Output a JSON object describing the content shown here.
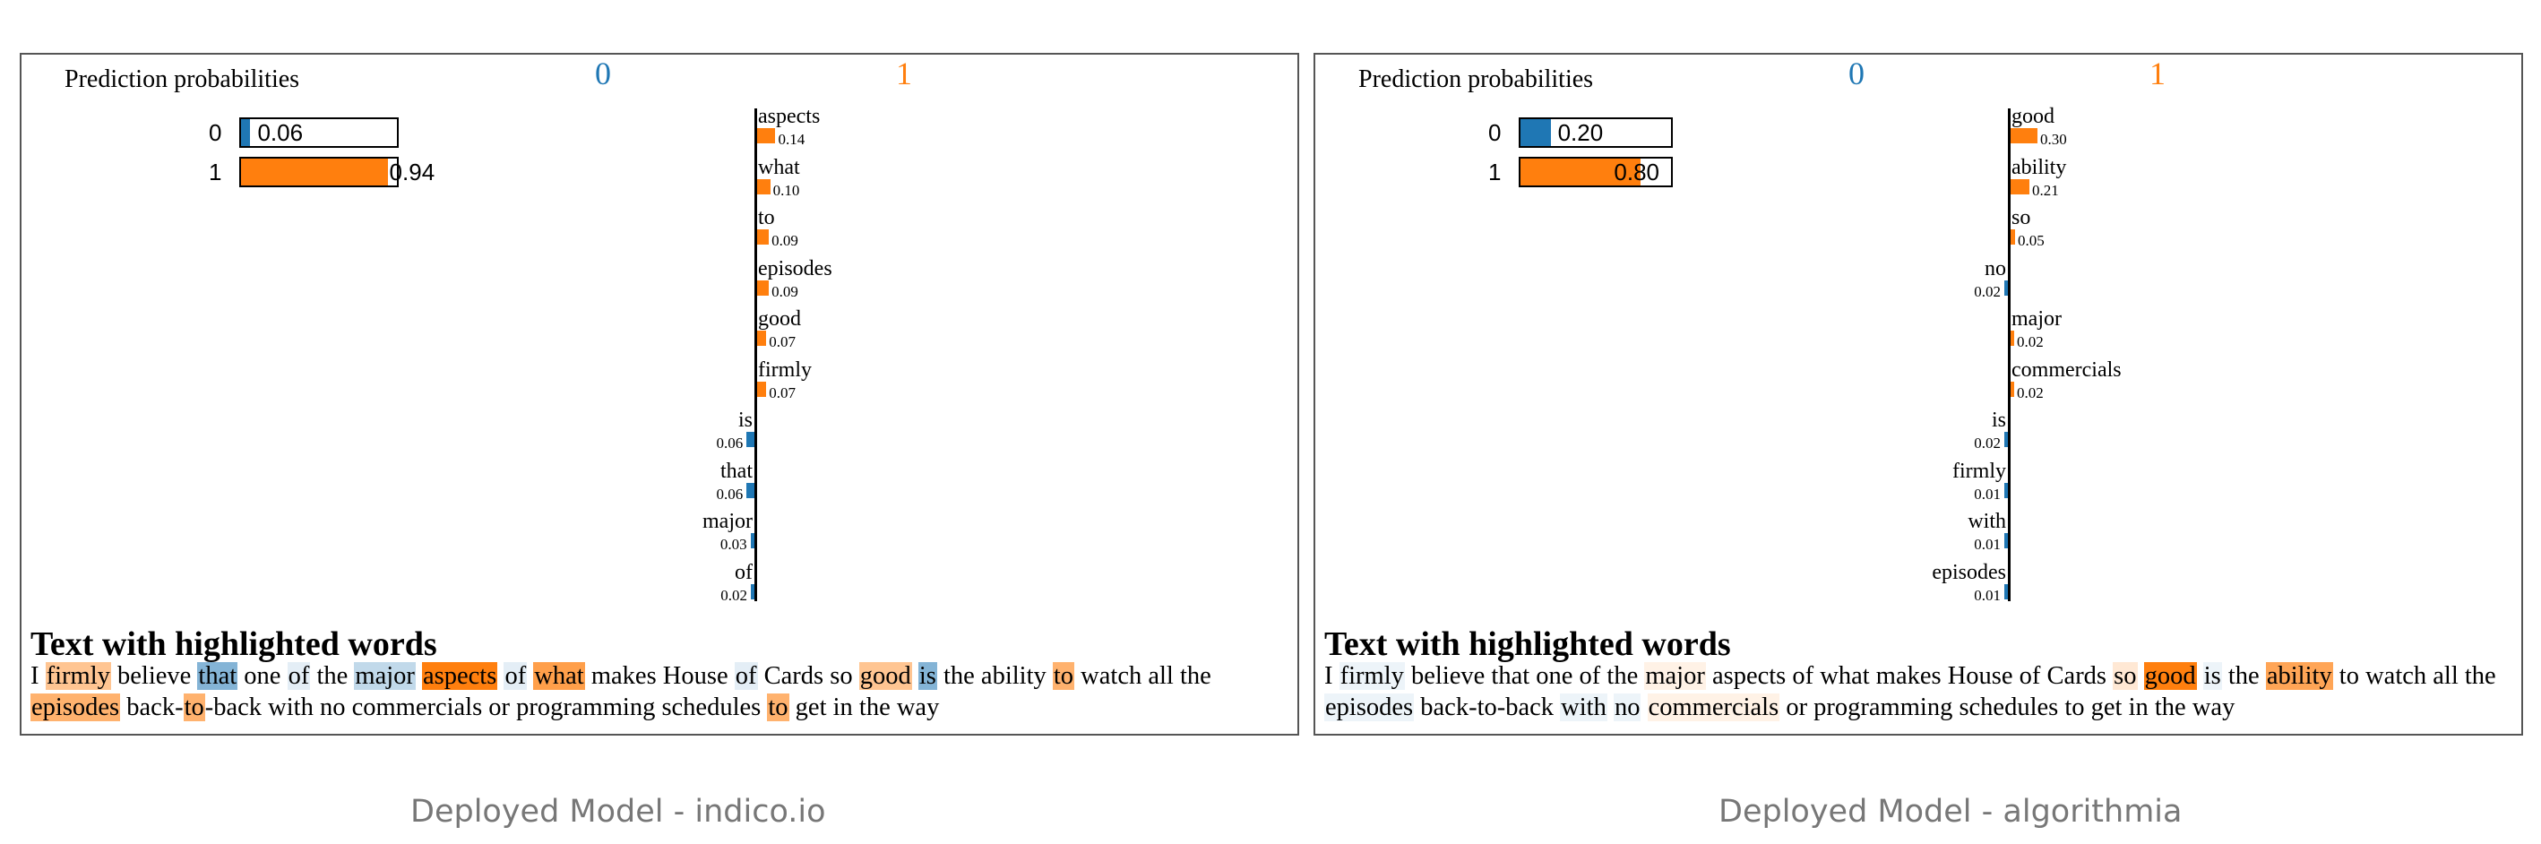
{
  "colors": {
    "class0": "#1f77b4",
    "class1": "#ff7f0e"
  },
  "panels": [
    {
      "title": "Prediction probabilities",
      "class_names": [
        "0",
        "1"
      ],
      "predictions": [
        {
          "label": "0",
          "prob": 0.06,
          "display": "0.06"
        },
        {
          "label": "1",
          "prob": 0.94,
          "display": "0.94"
        }
      ],
      "features": [
        {
          "word": "aspects",
          "weight": 0.14,
          "display": "0.14",
          "cls": 1
        },
        {
          "word": "what",
          "weight": 0.1,
          "display": "0.10",
          "cls": 1
        },
        {
          "word": "to",
          "weight": 0.09,
          "display": "0.09",
          "cls": 1
        },
        {
          "word": "episodes",
          "weight": 0.09,
          "display": "0.09",
          "cls": 1
        },
        {
          "word": "good",
          "weight": 0.07,
          "display": "0.07",
          "cls": 1
        },
        {
          "word": "firmly",
          "weight": 0.07,
          "display": "0.07",
          "cls": 1
        },
        {
          "word": "is",
          "weight": 0.06,
          "display": "0.06",
          "cls": 0
        },
        {
          "word": "that",
          "weight": 0.06,
          "display": "0.06",
          "cls": 0
        },
        {
          "word": "major",
          "weight": 0.03,
          "display": "0.03",
          "cls": 0
        },
        {
          "word": "of",
          "weight": 0.02,
          "display": "0.02",
          "cls": 0
        }
      ],
      "highlight_title": "Text with highlighted words",
      "text_lines": [
        [
          [
            "I ",
            null,
            0
          ],
          [
            "firmly",
            1,
            0.45
          ],
          [
            " believe ",
            null,
            0
          ],
          [
            "that",
            0,
            0.55
          ],
          [
            " one ",
            null,
            0
          ],
          [
            "of",
            0,
            0.12
          ],
          [
            " the ",
            null,
            0
          ],
          [
            "major",
            0,
            0.28
          ],
          [
            " ",
            null,
            0
          ],
          [
            "aspects",
            1,
            1.0
          ],
          [
            " ",
            null,
            0
          ],
          [
            "of",
            0,
            0.12
          ],
          [
            " ",
            null,
            0
          ],
          [
            "what",
            1,
            0.75
          ],
          [
            " makes House ",
            null,
            0
          ],
          [
            "of",
            0,
            0.12
          ],
          [
            " Cards so ",
            null,
            0
          ],
          [
            "good",
            1,
            0.45
          ],
          [
            " ",
            null,
            0
          ],
          [
            "is",
            0,
            0.55
          ],
          [
            " the ability ",
            null,
            0
          ],
          [
            "to",
            1,
            0.6
          ],
          [
            " watch all the",
            null,
            0
          ]
        ],
        [
          [
            "episodes",
            1,
            0.6
          ],
          [
            " back-",
            null,
            0
          ],
          [
            "to",
            1,
            0.6
          ],
          [
            "-back with no commercials or programming schedules ",
            null,
            0
          ],
          [
            "to",
            1,
            0.6
          ],
          [
            " get in the way",
            null,
            0
          ]
        ]
      ],
      "caption": "Deployed Model - indico.io"
    },
    {
      "title": "Prediction probabilities",
      "class_names": [
        "0",
        "1"
      ],
      "predictions": [
        {
          "label": "0",
          "prob": 0.2,
          "display": "0.20"
        },
        {
          "label": "1",
          "prob": 0.8,
          "display": "0.80"
        }
      ],
      "features": [
        {
          "word": "good",
          "weight": 0.3,
          "display": "0.30",
          "cls": 1
        },
        {
          "word": "ability",
          "weight": 0.21,
          "display": "0.21",
          "cls": 1
        },
        {
          "word": "so",
          "weight": 0.05,
          "display": "0.05",
          "cls": 1
        },
        {
          "word": "no",
          "weight": 0.02,
          "display": "0.02",
          "cls": 0
        },
        {
          "word": "major",
          "weight": 0.02,
          "display": "0.02",
          "cls": 1
        },
        {
          "word": "commercials",
          "weight": 0.02,
          "display": "0.02",
          "cls": 1
        },
        {
          "word": "is",
          "weight": 0.02,
          "display": "0.02",
          "cls": 0
        },
        {
          "word": "firmly",
          "weight": 0.01,
          "display": "0.01",
          "cls": 0
        },
        {
          "word": "with",
          "weight": 0.01,
          "display": "0.01",
          "cls": 0
        },
        {
          "word": "episodes",
          "weight": 0.01,
          "display": "0.01",
          "cls": 0
        }
      ],
      "highlight_title": "Text with highlighted words",
      "text_lines": [
        [
          [
            "I ",
            null,
            0
          ],
          [
            "firmly",
            0,
            0.05
          ],
          [
            " believe that one of the ",
            null,
            0
          ],
          [
            "major",
            1,
            0.1
          ],
          [
            " aspects of what makes House of Cards ",
            null,
            0
          ],
          [
            "so",
            1,
            0.18
          ],
          [
            " ",
            null,
            0
          ],
          [
            "good",
            1,
            1.0
          ],
          [
            " ",
            null,
            0
          ],
          [
            "is",
            0,
            0.05
          ],
          [
            " the ",
            null,
            0
          ],
          [
            "ability",
            1,
            0.7
          ],
          [
            " to watch all the",
            null,
            0
          ]
        ],
        [
          [
            "episodes",
            0,
            0.03
          ],
          [
            " back-to-back ",
            null,
            0
          ],
          [
            "with",
            0,
            0.03
          ],
          [
            " ",
            null,
            0
          ],
          [
            "no",
            0,
            0.07
          ],
          [
            " ",
            null,
            0
          ],
          [
            "commercials",
            1,
            0.1
          ],
          [
            " or programming schedules to get in the way",
            null,
            0
          ]
        ]
      ],
      "caption": "Deployed Model - algorithmia"
    }
  ],
  "chart_data": [
    {
      "type": "bar",
      "title": "Prediction probabilities",
      "categories": [
        "0",
        "1"
      ],
      "values": [
        0.06,
        0.94
      ],
      "feature_weights": {
        "categories": [
          "aspects",
          "what",
          "to",
          "episodes",
          "good",
          "firmly",
          "is",
          "that",
          "major",
          "of"
        ],
        "values": [
          0.14,
          0.1,
          0.09,
          0.09,
          0.07,
          0.07,
          -0.06,
          -0.06,
          -0.03,
          -0.02
        ]
      }
    },
    {
      "type": "bar",
      "title": "Prediction probabilities",
      "categories": [
        "0",
        "1"
      ],
      "values": [
        0.2,
        0.8
      ],
      "feature_weights": {
        "categories": [
          "good",
          "ability",
          "so",
          "no",
          "major",
          "commercials",
          "is",
          "firmly",
          "with",
          "episodes"
        ],
        "values": [
          0.3,
          0.21,
          0.05,
          -0.02,
          0.02,
          0.02,
          -0.02,
          -0.01,
          -0.01,
          -0.01
        ]
      }
    }
  ]
}
